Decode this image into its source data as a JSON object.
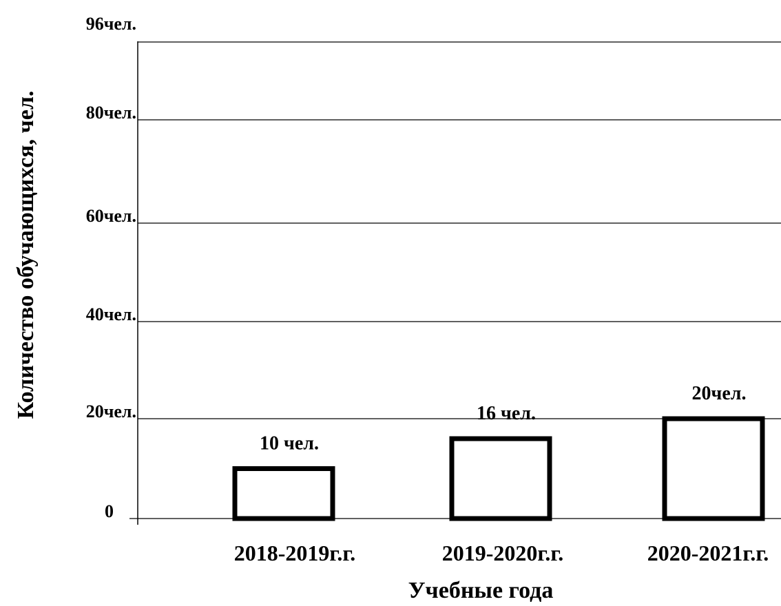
{
  "chart_data": {
    "type": "bar",
    "title": "",
    "xlabel": "Учебные года",
    "ylabel": "Количество обучающихся, чел.",
    "categories": [
      "2018-2019г.г.",
      "2019-2020г.г.",
      "2020-2021г.г."
    ],
    "values": [
      10,
      16,
      20
    ],
    "data_labels": [
      "10 чел.",
      "16 чел.",
      "20чел."
    ],
    "yticks": [
      {
        "value": 0,
        "label": "0"
      },
      {
        "value": 20,
        "label": "20чел."
      },
      {
        "value": 40,
        "label": "40чел."
      },
      {
        "value": 60,
        "label": "60чел."
      },
      {
        "value": 80,
        "label": "80чел."
      },
      {
        "value": 96,
        "label": "96чел."
      }
    ],
    "ylim": [
      0,
      96
    ],
    "grid": true,
    "legend": "none",
    "bar_fill": "#ffffff",
    "bar_stroke": "#000000"
  }
}
